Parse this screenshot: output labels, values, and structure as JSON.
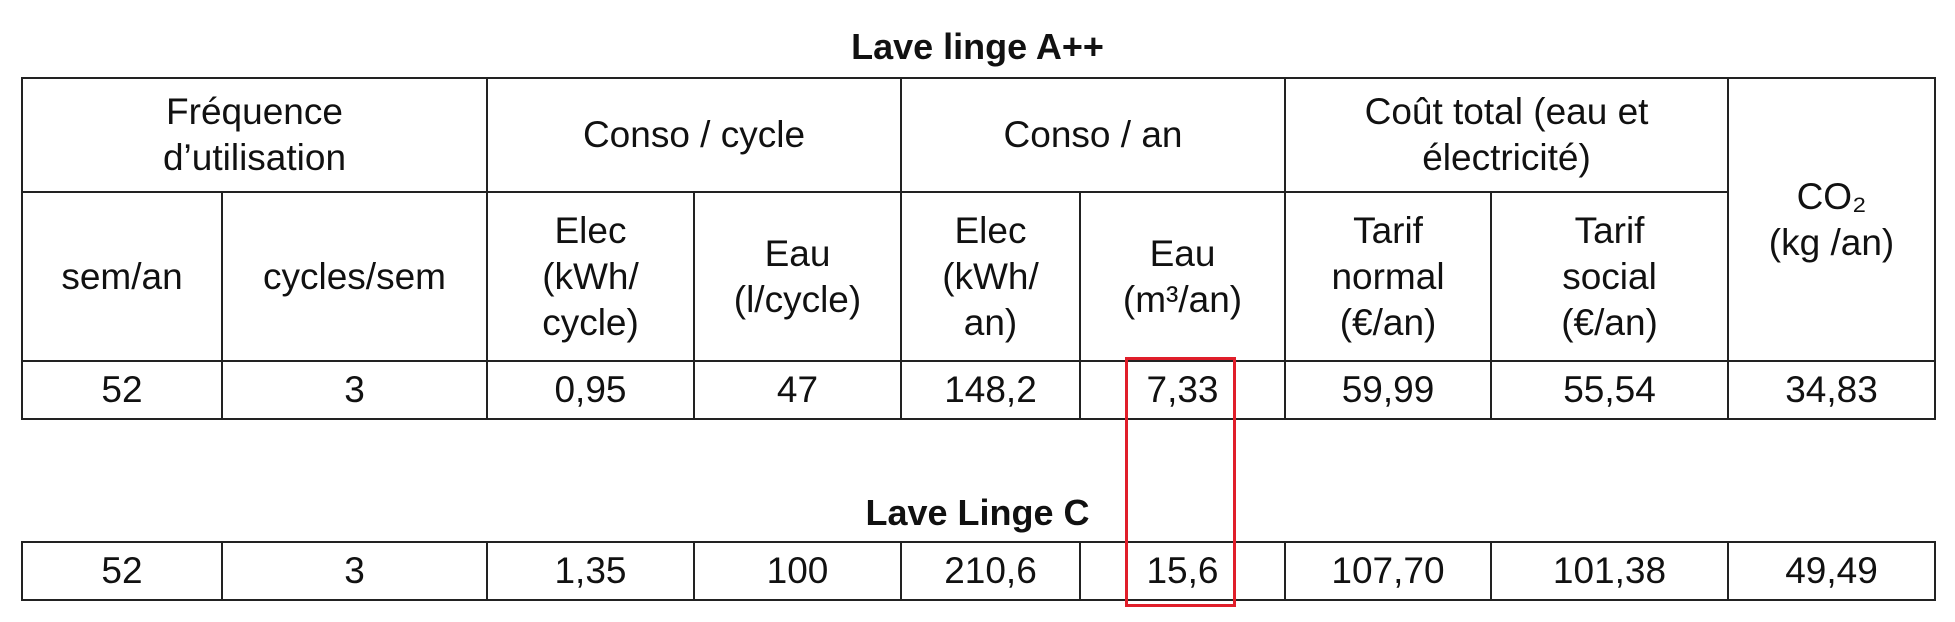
{
  "tables": [
    {
      "title": "Lave linge A++",
      "header_groups": [
        {
          "lines": [
            "Fréquence",
            "d’utilisation"
          ]
        },
        {
          "lines": [
            "Conso / cycle"
          ]
        },
        {
          "lines": [
            "Conso / an"
          ]
        },
        {
          "lines": [
            "Coût total (eau et",
            "électricité)"
          ]
        },
        {
          "lines": [
            "CO₂",
            "(kg /an)"
          ]
        }
      ],
      "columns": [
        [
          "sem/an"
        ],
        [
          "cycles/sem"
        ],
        [
          "Elec",
          "(kWh/",
          "cycle)"
        ],
        [
          "Eau",
          "(l/cycle)"
        ],
        [
          "Elec",
          "(kWh/",
          "an)"
        ],
        [
          "Eau",
          "(m³/an)"
        ],
        [
          "Tarif",
          "normal",
          "(€/an)"
        ],
        [
          "Tarif",
          "social",
          "(€/an)"
        ]
      ],
      "rows": [
        [
          "52",
          "3",
          "0,95",
          "47",
          "148,2",
          "7,33",
          "59,99",
          "55,54",
          "34,83"
        ]
      ]
    },
    {
      "title": "Lave Linge C",
      "rows": [
        [
          "52",
          "3",
          "1,35",
          "100",
          "210,6",
          "15,6",
          "107,70",
          "101,38",
          "49,49"
        ]
      ]
    }
  ]
}
